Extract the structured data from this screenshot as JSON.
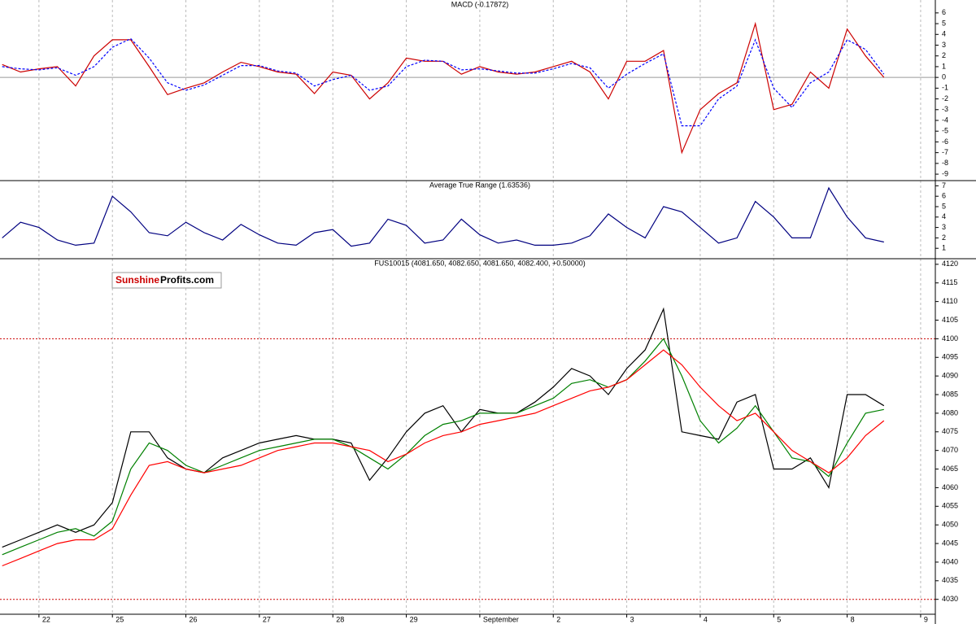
{
  "logo": {
    "part1": "Sunshine",
    "part2": "Profits.com"
  },
  "chart_data": [
    {
      "type": "line",
      "title": "MACD (-0.17872)",
      "x": [
        -0.5,
        -0.25,
        0,
        0.25,
        0.5,
        0.75,
        1,
        1.25,
        1.5,
        1.75,
        2,
        2.25,
        2.5,
        2.75,
        3,
        3.25,
        3.5,
        3.75,
        4,
        4.25,
        4.5,
        4.75,
        5,
        5.25,
        5.5,
        5.75,
        6,
        6.25,
        6.5,
        6.75,
        7,
        7.25,
        7.5,
        7.75,
        8,
        8.25,
        8.5,
        8.75,
        9,
        9.25,
        9.5,
        9.75,
        10,
        10.25,
        10.5,
        10.75,
        11,
        11.25,
        11.5
      ],
      "series": [
        {
          "color": "#cc0000",
          "values": [
            1.2,
            0.5,
            0.8,
            1.0,
            -0.8,
            2.0,
            3.5,
            3.5,
            1.0,
            -1.6,
            -1.0,
            -0.5,
            0.5,
            1.4,
            1.0,
            0.5,
            0.3,
            -1.5,
            0.5,
            0.2,
            -2.0,
            -0.5,
            1.8,
            1.5,
            1.5,
            0.3,
            1.0,
            0.5,
            0.3,
            0.5,
            1.0,
            1.5,
            0.5,
            -2.0,
            1.5,
            1.5,
            2.5,
            -7.0,
            -3.0,
            -1.5,
            -0.5,
            5.0,
            -3.0,
            -2.5,
            0.5,
            -1.0,
            4.5,
            2.0,
            0.0
          ]
        },
        {
          "color": "#0000ff",
          "dashed": true,
          "values": [
            1.0,
            0.8,
            0.7,
            0.9,
            0.2,
            1.0,
            2.8,
            3.6,
            1.8,
            -0.5,
            -1.2,
            -0.7,
            0.2,
            1.1,
            1.1,
            0.6,
            0.4,
            -0.8,
            -0.2,
            0.2,
            -1.2,
            -0.8,
            1.0,
            1.6,
            1.5,
            0.7,
            0.8,
            0.6,
            0.4,
            0.4,
            0.8,
            1.3,
            0.9,
            -1.0,
            0.3,
            1.3,
            2.2,
            -4.5,
            -4.5,
            -2.0,
            -0.8,
            3.5,
            -1.0,
            -2.8,
            -0.5,
            0.5,
            3.5,
            2.6,
            0.3
          ]
        }
      ],
      "xlim": [
        -0.53,
        12.2
      ],
      "ylim": [
        -9.6,
        7.2
      ],
      "yticks": [
        6,
        5,
        4,
        3,
        2,
        1,
        0,
        -1,
        -2,
        -3,
        -4,
        -5,
        -6,
        -7,
        -8,
        -9
      ],
      "hlines": [
        0
      ],
      "hline_color": "#999999"
    },
    {
      "type": "line",
      "title": "Average True Range (1.63536)",
      "x": [
        -0.5,
        -0.25,
        0,
        0.25,
        0.5,
        0.75,
        1,
        1.25,
        1.5,
        1.75,
        2,
        2.25,
        2.5,
        2.75,
        3,
        3.25,
        3.5,
        3.75,
        4,
        4.25,
        4.5,
        4.75,
        5,
        5.25,
        5.5,
        5.75,
        6,
        6.25,
        6.5,
        6.75,
        7,
        7.25,
        7.5,
        7.75,
        8,
        8.25,
        8.5,
        8.75,
        9,
        9.25,
        9.5,
        9.75,
        10,
        10.25,
        10.5,
        10.75,
        11,
        11.25,
        11.5
      ],
      "series": [
        {
          "color": "#000080",
          "values": [
            2.0,
            3.5,
            3.0,
            1.8,
            1.3,
            1.5,
            6.0,
            4.5,
            2.5,
            2.2,
            3.5,
            2.5,
            1.8,
            3.3,
            2.3,
            1.5,
            1.3,
            2.5,
            2.8,
            1.2,
            1.5,
            3.8,
            3.2,
            1.5,
            1.8,
            3.8,
            2.3,
            1.5,
            1.8,
            1.3,
            1.3,
            1.5,
            2.2,
            4.3,
            3.0,
            2.0,
            5.0,
            4.5,
            3.0,
            1.5,
            2.0,
            5.5,
            4.0,
            2.0,
            2.0,
            6.8,
            4.0,
            2.0,
            1.6
          ]
        }
      ],
      "xlim": [
        -0.53,
        12.2
      ],
      "ylim": [
        0,
        7.5
      ],
      "yticks": [
        7,
        6,
        5,
        4,
        3,
        2,
        1
      ]
    },
    {
      "type": "line",
      "title": "FUS10015 (4081.650, 4082.650, 4081.650, 4082.400, +0.50000)",
      "x": [
        -0.5,
        -0.25,
        0,
        0.25,
        0.5,
        0.75,
        1,
        1.25,
        1.5,
        1.75,
        2,
        2.25,
        2.5,
        2.75,
        3,
        3.25,
        3.5,
        3.75,
        4,
        4.25,
        4.5,
        4.75,
        5,
        5.25,
        5.5,
        5.75,
        6,
        6.25,
        6.5,
        6.75,
        7,
        7.25,
        7.5,
        7.75,
        8,
        8.25,
        8.5,
        8.75,
        9,
        9.25,
        9.5,
        9.75,
        10,
        10.25,
        10.5,
        10.75,
        11,
        11.25,
        11.5
      ],
      "series": [
        {
          "color": "#000000",
          "values": [
            4044,
            4046,
            4048,
            4050,
            4048,
            4050,
            4056,
            4075,
            4075,
            4068,
            4065,
            4064,
            4068,
            4070,
            4072,
            4073,
            4074,
            4073,
            4073,
            4072,
            4062,
            4068,
            4075,
            4080,
            4082,
            4075,
            4081,
            4080,
            4080,
            4083,
            4087,
            4092,
            4090,
            4085,
            4092,
            4097,
            4108,
            4075,
            4074,
            4073,
            4083,
            4085,
            4065,
            4065,
            4068,
            4060,
            4085,
            4085,
            4082
          ]
        },
        {
          "color": "#008000",
          "values": [
            4042,
            4044,
            4046,
            4048,
            4049,
            4047,
            4051,
            4065,
            4072,
            4070,
            4066,
            4064,
            4066,
            4068,
            4070,
            4071,
            4072,
            4073,
            4073,
            4071,
            4068,
            4065,
            4069,
            4074,
            4077,
            4078,
            4080,
            4080,
            4080,
            4082,
            4084,
            4088,
            4089,
            4087,
            4089,
            4094,
            4100,
            4090,
            4078,
            4072,
            4076,
            4082,
            4075,
            4068,
            4067,
            4063,
            4072,
            4080,
            4081
          ]
        },
        {
          "color": "#ff0000",
          "values": [
            4039,
            4041,
            4043,
            4045,
            4046,
            4046,
            4049,
            4058,
            4066,
            4067,
            4065,
            4064,
            4065,
            4066,
            4068,
            4070,
            4071,
            4072,
            4072,
            4071,
            4070,
            4067,
            4069,
            4072,
            4074,
            4075,
            4077,
            4078,
            4079,
            4080,
            4082,
            4084,
            4086,
            4087,
            4089,
            4093,
            4097,
            4093,
            4087,
            4082,
            4078,
            4080,
            4075,
            4070,
            4067,
            4064,
            4068,
            4074,
            4078
          ]
        }
      ],
      "xlim": [
        -0.53,
        12.2
      ],
      "xticks": [
        {
          "value": 0,
          "label": "22"
        },
        {
          "value": 1,
          "label": "25"
        },
        {
          "value": 2,
          "label": "26"
        },
        {
          "value": 3,
          "label": "27"
        },
        {
          "value": 4,
          "label": "28"
        },
        {
          "value": 5,
          "label": "29"
        },
        {
          "value": 6,
          "label": "September"
        },
        {
          "value": 7,
          "label": "2"
        },
        {
          "value": 8,
          "label": "3"
        },
        {
          "value": 9,
          "label": "4"
        },
        {
          "value": 10,
          "label": "5"
        },
        {
          "value": 11,
          "label": "8"
        },
        {
          "value": 12,
          "label": "9"
        }
      ],
      "ylim": [
        4026,
        4121.5
      ],
      "yticks": [
        4120,
        4115,
        4110,
        4105,
        4100,
        4095,
        4090,
        4085,
        4080,
        4075,
        4070,
        4065,
        4060,
        4055,
        4050,
        4045,
        4040,
        4035,
        4030
      ],
      "hlines": [
        4100,
        4030
      ],
      "hline_color": "#cc0000"
    }
  ]
}
